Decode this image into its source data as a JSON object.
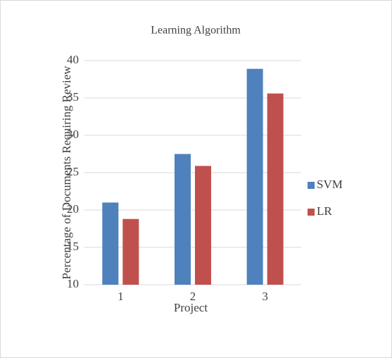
{
  "chart_data": {
    "type": "bar",
    "title": "Learning Algorithm",
    "x_label": "Project",
    "y_label": "Percentage of Documents Requiring Review",
    "categories": [
      "1",
      "2",
      "3"
    ],
    "series": [
      {
        "name": "SVM",
        "color": "#4f81bd",
        "values": [
          21.0,
          27.5,
          38.9
        ]
      },
      {
        "name": "LR",
        "color": "#c0504d",
        "values": [
          18.8,
          25.9,
          35.6
        ]
      }
    ],
    "ylim": [
      10,
      40
    ],
    "yticks": [
      10,
      15,
      20,
      25,
      30,
      35,
      40
    ],
    "grid": true,
    "legend": "right"
  }
}
